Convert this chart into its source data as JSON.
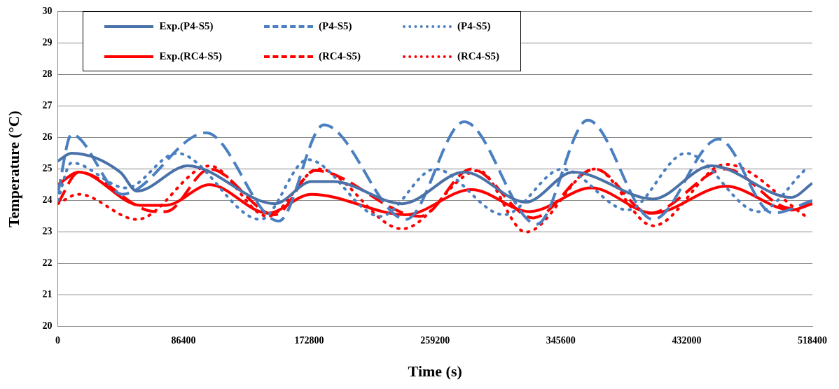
{
  "chart_data": {
    "type": "line",
    "xlabel": "Time (s)",
    "ylabel": "Temperature (°C)",
    "xlim": [
      0,
      518400
    ],
    "xticks": [
      0,
      86400,
      172800,
      259200,
      345600,
      432000,
      518400
    ],
    "ylim": [
      20,
      30
    ],
    "yticks": [
      20,
      21,
      22,
      23,
      24,
      25,
      26,
      27,
      28,
      29,
      30
    ],
    "grid": "y",
    "legend": "top",
    "marker": "none",
    "series": [
      {
        "name": "Exp.(P4-S5)",
        "color": "#4a72a8",
        "line_style": "solid",
        "x": [
          0,
          9500,
          43000,
          54400,
          89400,
          149300,
          174300,
          189300,
          236700,
          279200,
          321600,
          354100,
          409000,
          449000,
          503900,
          518400
        ],
        "values": [
          25.25,
          25.5,
          24.9,
          24.3,
          25.1,
          23.9,
          24.6,
          24.6,
          23.9,
          24.9,
          23.95,
          24.9,
          24.05,
          25.1,
          24.1,
          24.55
        ]
      },
      {
        "name": "(P4-S5)",
        "color": "#4a7fc0",
        "line_style": "dashed",
        "x": [
          0,
          9500,
          44400,
          101900,
          151800,
          182800,
          239200,
          279200,
          329100,
          364100,
          409000,
          454000,
          491400,
          518400
        ],
        "values": [
          24.2,
          26.1,
          24.2,
          26.15,
          23.35,
          26.4,
          23.4,
          26.5,
          23.25,
          26.55,
          23.4,
          25.95,
          23.6,
          24.0
        ]
      },
      {
        "name": "(P4-S5)",
        "color": "#4a7fc0",
        "line_style": "dotted",
        "x": [
          0,
          9500,
          47000,
          81900,
          139300,
          171800,
          221700,
          259200,
          306600,
          346600,
          391500,
          431500,
          481400,
          513900
        ],
        "values": [
          24.0,
          25.2,
          24.4,
          25.5,
          23.4,
          25.3,
          23.5,
          25.0,
          23.55,
          25.0,
          23.7,
          25.5,
          23.65,
          25.0
        ]
      },
      {
        "name": "Exp.(RC4-S5)",
        "color": "#ff0000",
        "line_style": "solid",
        "x": [
          0,
          14500,
          57000,
          74400,
          104400,
          144300,
          174300,
          239200,
          284200,
          324100,
          366600,
          409000,
          459000,
          503900,
          518400
        ],
        "values": [
          24.5,
          24.9,
          23.85,
          23.85,
          24.5,
          23.6,
          24.2,
          23.55,
          24.35,
          23.65,
          24.4,
          23.6,
          24.45,
          23.7,
          23.9
        ]
      },
      {
        "name": "(RC4-S5)",
        "color": "#ff0000",
        "line_style": "dashed",
        "x": [
          0,
          14500,
          67000,
          74400,
          104400,
          149300,
          176800,
          249200,
          284200,
          326600,
          369100,
          406500,
          459000,
          503900,
          518400
        ],
        "values": [
          23.9,
          24.9,
          23.65,
          23.65,
          25.0,
          23.55,
          24.95,
          23.5,
          25.0,
          23.45,
          25.0,
          23.6,
          25.0,
          23.75,
          23.9
        ]
      },
      {
        "name": "(RC4-S5)",
        "color": "#ff0000",
        "line_style": "dotted",
        "x": [
          0,
          14500,
          54400,
          104400,
          144300,
          179300,
          236700,
          289200,
          321600,
          369100,
          409000,
          459000,
          513900
        ],
        "values": [
          23.9,
          24.2,
          23.4,
          25.1,
          23.5,
          25.0,
          23.1,
          24.95,
          23.0,
          25.0,
          23.2,
          25.15,
          23.5
        ]
      }
    ]
  }
}
